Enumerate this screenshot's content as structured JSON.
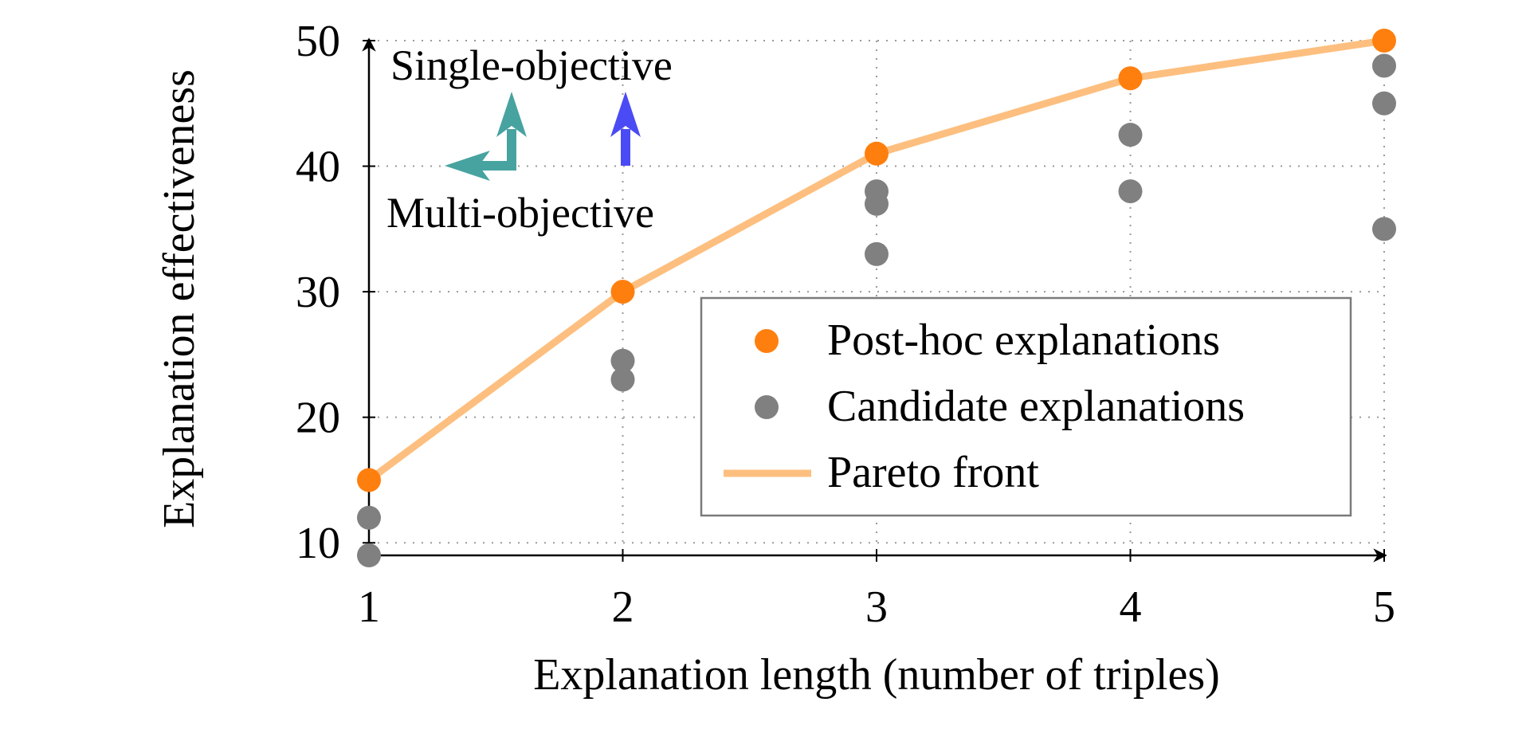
{
  "chart_data": {
    "type": "scatter",
    "xlabel": "Explanation length (number of triples)",
    "ylabel": "Explanation effectiveness",
    "xlim": [
      1,
      5
    ],
    "ylim": [
      9,
      50
    ],
    "x_ticks": [
      1,
      2,
      3,
      4,
      5
    ],
    "y_ticks": [
      10,
      20,
      30,
      40,
      50
    ],
    "grid": true,
    "legend_position": "lower-right",
    "series": [
      {
        "name": "Post-hoc explanations",
        "kind": "scatter",
        "color": "#ff7f0e",
        "points": [
          {
            "x": 1,
            "y": 15
          },
          {
            "x": 2,
            "y": 30
          },
          {
            "x": 3,
            "y": 41
          },
          {
            "x": 4,
            "y": 47
          },
          {
            "x": 5,
            "y": 50
          }
        ]
      },
      {
        "name": "Candidate explanations",
        "kind": "scatter",
        "color": "#808080",
        "points": [
          {
            "x": 1,
            "y": 12
          },
          {
            "x": 1,
            "y": 9
          },
          {
            "x": 2,
            "y": 24.5
          },
          {
            "x": 2,
            "y": 23
          },
          {
            "x": 3,
            "y": 38
          },
          {
            "x": 3,
            "y": 37
          },
          {
            "x": 3,
            "y": 33
          },
          {
            "x": 4,
            "y": 42.5
          },
          {
            "x": 4,
            "y": 38
          },
          {
            "x": 5,
            "y": 48
          },
          {
            "x": 5,
            "y": 45
          },
          {
            "x": 5,
            "y": 35
          }
        ]
      },
      {
        "name": "Pareto front",
        "kind": "line",
        "color": "#fdbf7f",
        "points": [
          {
            "x": 1,
            "y": 15
          },
          {
            "x": 2,
            "y": 30
          },
          {
            "x": 3,
            "y": 41
          },
          {
            "x": 4,
            "y": 47
          },
          {
            "x": 5,
            "y": 50
          }
        ]
      }
    ],
    "annotations": [
      {
        "text": "Single-objective",
        "color": "#4b4bf5"
      },
      {
        "text": "Multi-objective",
        "color": "#47a3a0"
      }
    ]
  }
}
